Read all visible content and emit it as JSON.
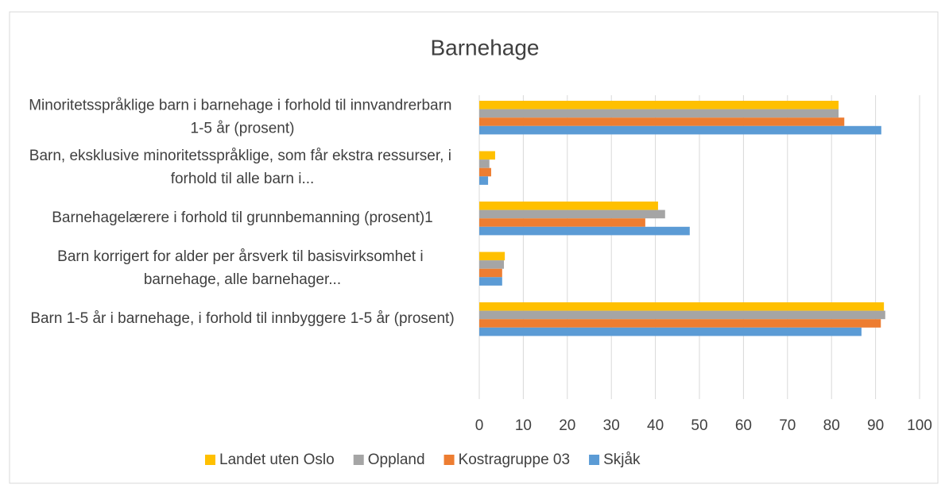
{
  "chart_data": {
    "type": "bar",
    "orientation": "horizontal",
    "title": "Barnehage",
    "categories": [
      "Minoritetsspråklige barn i barnehage i forhold til innvandrerbarn 1-5 år (prosent)",
      "Barn, eksklusive minoritetsspråklige, som får ekstra ressurser, i forhold til alle barn i...",
      "Barnehagelærere i forhold til grunnbemanning (prosent)1",
      "Barn korrigert for alder per årsverk til basisvirksomhet i barnehage, alle barnehager...",
      "Barn 1-5 år i barnehage, i forhold til innbyggere 1-5 år (prosent)"
    ],
    "series": [
      {
        "name": "Landet uten Oslo",
        "color": "#ffc000",
        "values": [
          81.6,
          3.6,
          40.6,
          5.8,
          91.9
        ]
      },
      {
        "name": "Oppland",
        "color": "#a5a5a5",
        "values": [
          81.6,
          2.3,
          42.2,
          5.6,
          92.2
        ]
      },
      {
        "name": "Kostragruppe 03",
        "color": "#ed7d31",
        "values": [
          82.9,
          2.7,
          37.7,
          5.2,
          91.2
        ]
      },
      {
        "name": "Skjåk",
        "color": "#5b9bd5",
        "values": [
          91.3,
          2.0,
          47.8,
          5.2,
          86.8
        ]
      }
    ],
    "xlim": [
      0,
      100
    ],
    "xticks": [
      0,
      10,
      20,
      30,
      40,
      50,
      60,
      70,
      80,
      90,
      100
    ],
    "grid": true,
    "legend": "bottom"
  }
}
